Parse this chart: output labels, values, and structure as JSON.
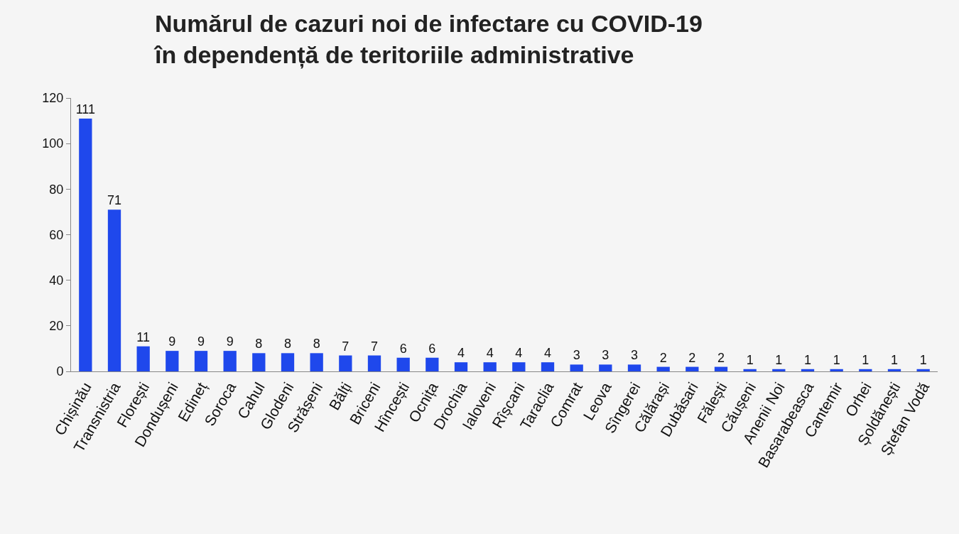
{
  "chart_data": {
    "type": "bar",
    "title": "Numărul de cazuri noi de infectare cu COVID-19\nîn dependență de teritoriile administrative",
    "categories": [
      "Chișinău",
      "Transnistria",
      "Florești",
      "Dondușeni",
      "Edineț",
      "Soroca",
      "Cahul",
      "Glodeni",
      "Strășeni",
      "Bălți",
      "Briceni",
      "Hîncești",
      "Ocnița",
      "Drochia",
      "Ialoveni",
      "Rîșcani",
      "Taraclia",
      "Comrat",
      "Leova",
      "Sîngerei",
      "Călărași",
      "Dubăsari",
      "Fălești",
      "Căușeni",
      "Anenii Noi",
      "Basarabeasca",
      "Cantemir",
      "Orhei",
      "Șoldănești",
      "Ștefan Vodă"
    ],
    "values": [
      111,
      71,
      11,
      9,
      9,
      9,
      8,
      8,
      8,
      7,
      7,
      6,
      6,
      4,
      4,
      4,
      4,
      3,
      3,
      3,
      2,
      2,
      2,
      1,
      1,
      1,
      1,
      1,
      1,
      1
    ],
    "color": "#1f48ec",
    "ylim": [
      0,
      120
    ],
    "yticks": [
      0,
      20,
      40,
      60,
      80,
      100,
      120
    ],
    "data_labels": true,
    "grid": false
  }
}
